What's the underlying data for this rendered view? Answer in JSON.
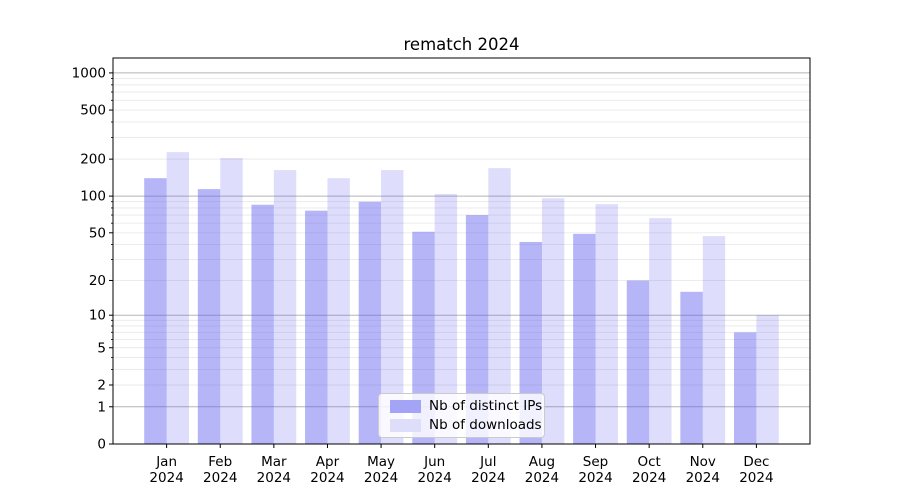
{
  "chart_data": {
    "type": "bar",
    "title": "rematch 2024",
    "categories": [
      "Jan",
      "Feb",
      "Mar",
      "Apr",
      "May",
      "Jun",
      "Jul",
      "Aug",
      "Sep",
      "Oct",
      "Nov",
      "Dec"
    ],
    "category_year": "2024",
    "series": [
      {
        "name": "Nb of distinct IPs",
        "display_color": "#a4a4f6",
        "base_color": "#5a5af0",
        "alpha": 0.45,
        "values": [
          140,
          114,
          85,
          76,
          90,
          51,
          70,
          42,
          49,
          20,
          16,
          7
        ]
      },
      {
        "name": "Nb of downloads",
        "display_color": "#dedefb",
        "base_color": "#5a5af0",
        "alpha": 0.2,
        "values": [
          228,
          204,
          163,
          140,
          163,
          104,
          169,
          96,
          86,
          66,
          47,
          10
        ]
      }
    ],
    "y_axis": {
      "scale": "log1p",
      "tick_labels": [
        0,
        1,
        2,
        5,
        10,
        20,
        50,
        100,
        200,
        500,
        1000
      ],
      "major_gridlines": [
        1,
        10,
        100,
        1000
      ],
      "ylim": [
        0,
        1320
      ]
    },
    "x_axis": {
      "label_line2": "2024"
    },
    "grid": {
      "minor_color": "#e9e9e9",
      "major_color": "#b5b5b5"
    },
    "spine_color": "#000000",
    "legend_position": "lower center"
  },
  "legend": {
    "items": [
      {
        "label": "Nb of distinct IPs",
        "color": "#a4a4f6"
      },
      {
        "label": "Nb of downloads",
        "color": "#dedefb"
      }
    ]
  }
}
